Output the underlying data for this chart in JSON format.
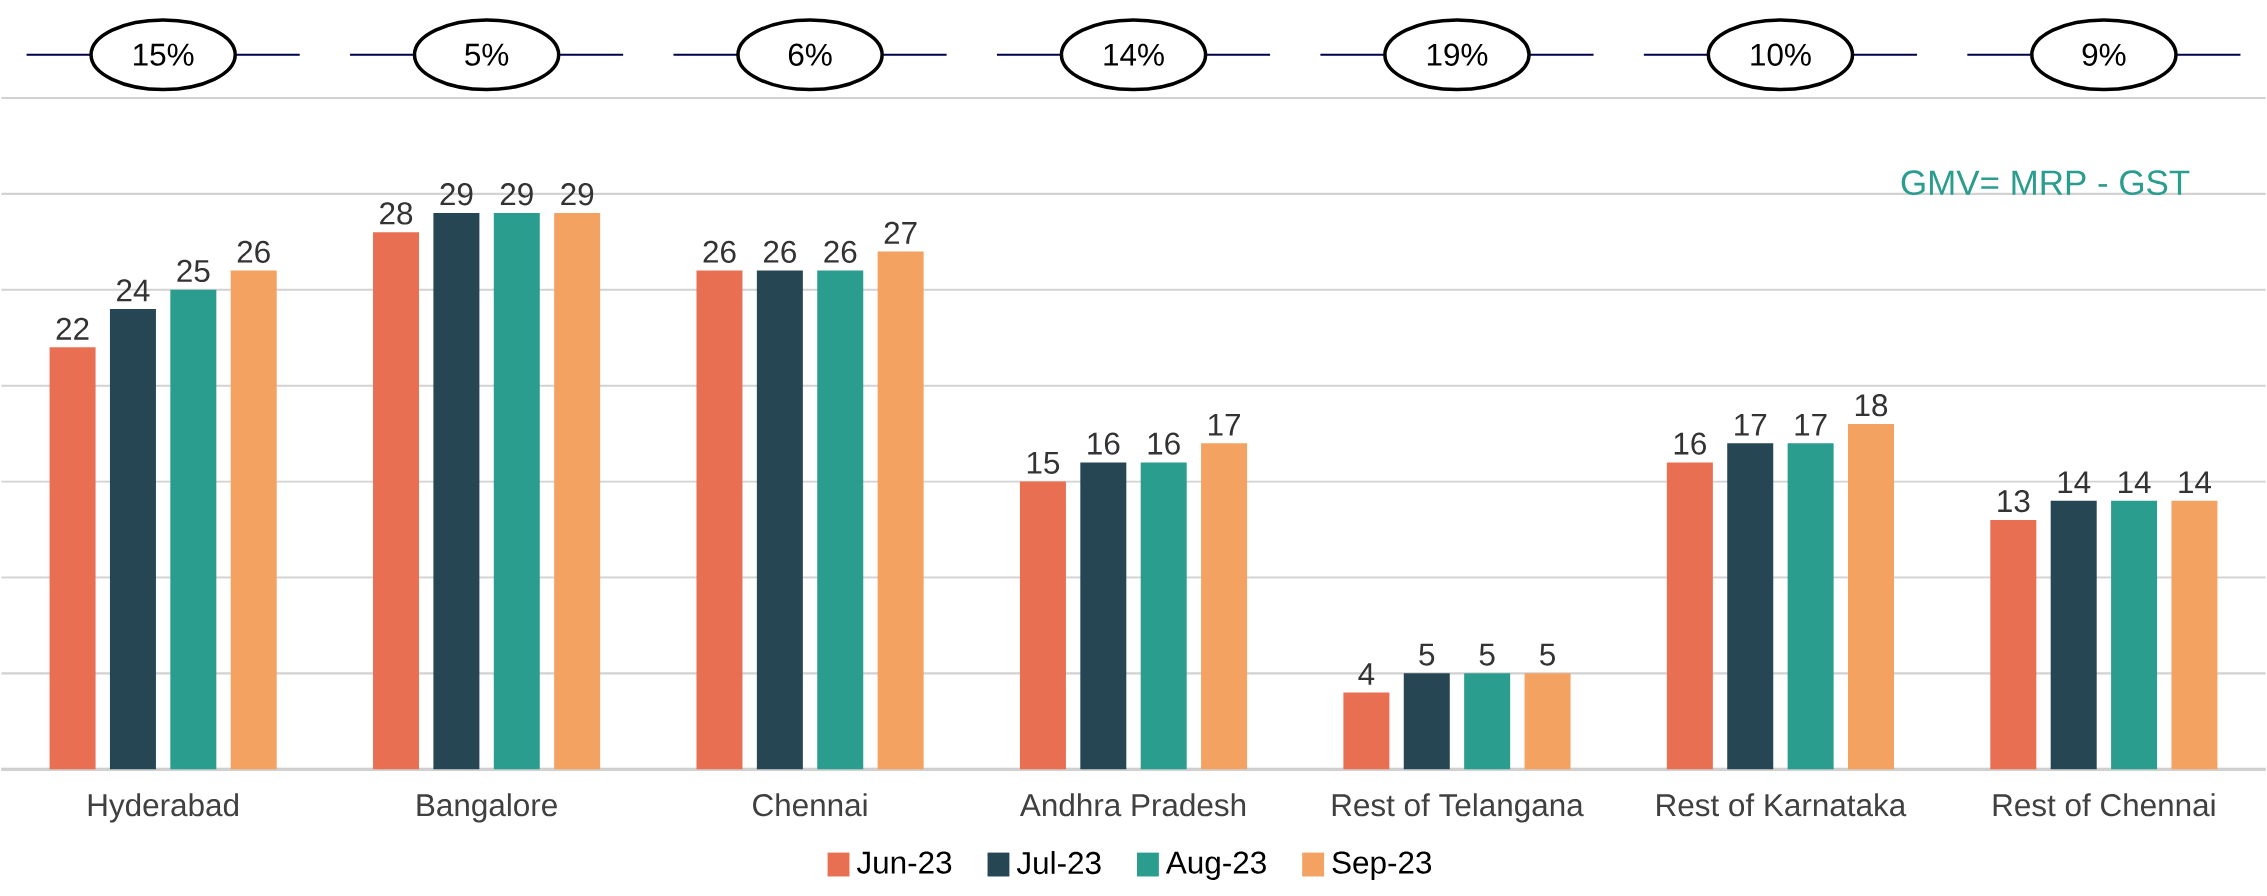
{
  "chart_data": {
    "type": "bar",
    "categories": [
      "Hyderabad",
      "Bangalore",
      "Chennai",
      "Andhra Pradesh",
      "Rest of Telangana",
      "Rest of Karnataka",
      "Rest of Chennai"
    ],
    "series": [
      {
        "name": "Jun-23",
        "color": "#e86f51",
        "values": [
          22,
          28,
          26,
          15,
          4,
          16,
          13
        ]
      },
      {
        "name": "Jul-23",
        "color": "#264653",
        "values": [
          24,
          29,
          26,
          16,
          5,
          17,
          14
        ]
      },
      {
        "name": "Aug-23",
        "color": "#2a9d8f",
        "values": [
          25,
          29,
          26,
          16,
          5,
          17,
          14
        ]
      },
      {
        "name": "Sep-23",
        "color": "#f4a261",
        "values": [
          26,
          29,
          27,
          17,
          5,
          18,
          14
        ]
      }
    ],
    "ylim": [
      0,
      35
    ],
    "yticks": [
      {
        "value": 0,
        "label": null
      },
      {
        "value": 5,
        "label": null
      },
      {
        "value": 10,
        "label": null
      },
      {
        "value": 15,
        "label": null
      },
      {
        "value": 20,
        "label": null
      },
      {
        "value": 25,
        "label": null
      },
      {
        "value": 30,
        "label": null
      },
      {
        "value": 35,
        "label": null
      }
    ],
    "tick_labels": "x",
    "grid": "y",
    "legend": "bottom",
    "data_labels": true,
    "annotations": [
      "15%",
      "5%",
      "6%",
      "14%",
      "19%",
      "10%",
      "9%",
      "GMV= MRP - GST"
    ]
  }
}
